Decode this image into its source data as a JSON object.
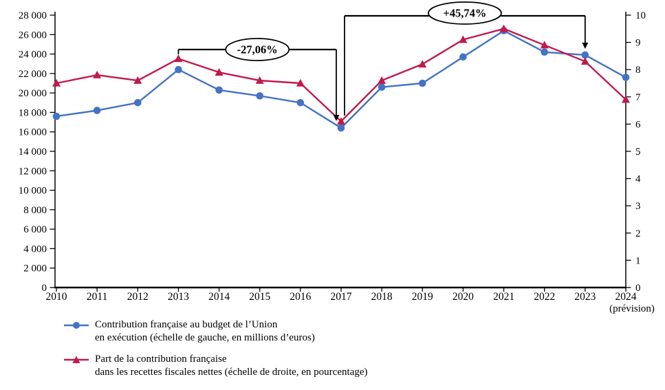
{
  "chart_data": {
    "type": "line",
    "title": "",
    "categories": [
      "2010",
      "2011",
      "2012",
      "2013",
      "2014",
      "2015",
      "2016",
      "2017",
      "2018",
      "2019",
      "2020",
      "2021",
      "2022",
      "2023",
      "2024"
    ],
    "x_axis_note": "(prévision)",
    "grid": false,
    "legend_position": "bottom-left",
    "left_axis": {
      "min": 0,
      "max": 28000,
      "step": 2000,
      "tick_labels": [
        "0",
        "2 000",
        "4 000",
        "6 000",
        "8 000",
        "10 000",
        "12 000",
        "14 000",
        "16 000",
        "18 000",
        "20 000",
        "22 000",
        "24 000",
        "26 000",
        "28 000"
      ]
    },
    "right_axis": {
      "min": 0,
      "max": 10,
      "step": 1,
      "tick_labels": [
        "0",
        "1",
        "2",
        "3",
        "4",
        "5",
        "6",
        "7",
        "8",
        "9",
        "10"
      ]
    },
    "series": [
      {
        "name": "Contribution française au budget de l’Union en exécution (échelle de gauche, en millions d’euros)",
        "axis": "left",
        "color": "#4472c4",
        "marker": "circle",
        "values": [
          17600,
          18200,
          19000,
          22400,
          20300,
          19700,
          19000,
          16400,
          20600,
          21000,
          23700,
          26400,
          24200,
          23900,
          21600
        ]
      },
      {
        "name": "Part de la contribution française dans les recettes fiscales nettes (échelle de droite, en pourcentage)",
        "axis": "right",
        "color": "#c2194c",
        "marker": "triangle",
        "values": [
          7.5,
          7.8,
          7.6,
          8.4,
          7.9,
          7.6,
          7.5,
          6.1,
          7.6,
          8.2,
          9.1,
          9.5,
          8.9,
          8.3,
          6.9
        ]
      }
    ],
    "annotations": [
      {
        "label": "-27,06%",
        "from": "2013",
        "to": "2017"
      },
      {
        "label": "+45,74%",
        "from": "2017",
        "to": "2023"
      }
    ],
    "legend": [
      {
        "line1": "Contribution française au budget de l’Union",
        "line2": "en exécution (échelle de gauche, en millions d’euros)"
      },
      {
        "line1": "Part de la contribution française",
        "line2": "dans les recettes fiscales nettes (échelle de droite, en pourcentage)"
      }
    ]
  }
}
